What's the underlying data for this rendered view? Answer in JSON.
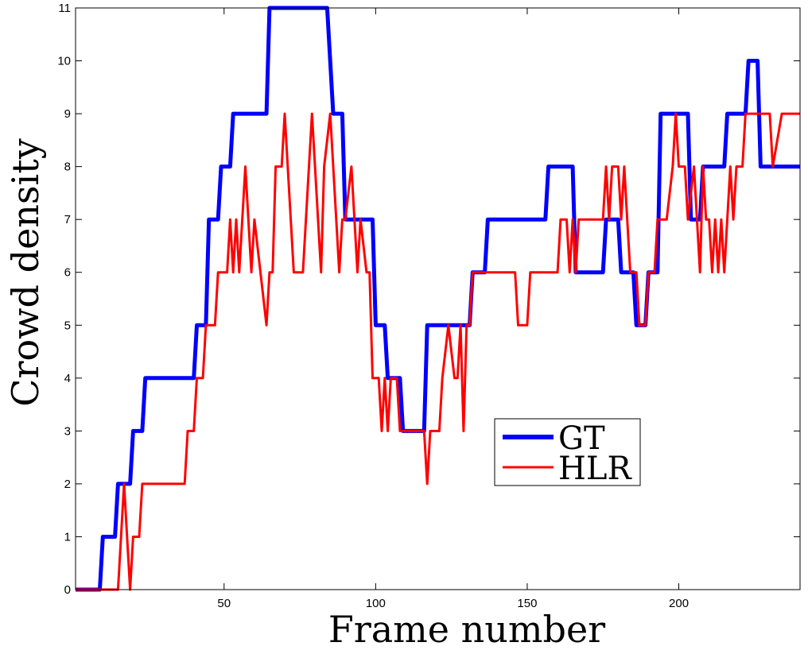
{
  "chart_data": {
    "type": "line",
    "title": "",
    "xlabel": "Frame number",
    "ylabel": "Crowd density",
    "xlim": [
      1,
      240
    ],
    "ylim": [
      0,
      11
    ],
    "xticks": [
      50,
      100,
      150,
      200
    ],
    "yticks": [
      0,
      1,
      2,
      3,
      4,
      5,
      6,
      7,
      8,
      9,
      10,
      11
    ],
    "grid": false,
    "legend_position": "center-right",
    "series": [
      {
        "name": "GT",
        "color": "#0000ff",
        "points": [
          [
            1,
            0
          ],
          [
            9,
            0
          ],
          [
            10,
            1
          ],
          [
            14,
            1
          ],
          [
            15,
            2
          ],
          [
            19,
            2
          ],
          [
            20,
            3
          ],
          [
            23,
            3
          ],
          [
            24,
            4
          ],
          [
            40,
            4
          ],
          [
            41,
            5
          ],
          [
            44,
            5
          ],
          [
            45,
            7
          ],
          [
            48,
            7
          ],
          [
            49,
            8
          ],
          [
            52,
            8
          ],
          [
            53,
            9
          ],
          [
            64,
            9
          ],
          [
            65,
            11
          ],
          [
            84,
            11
          ],
          [
            86,
            9
          ],
          [
            89,
            9
          ],
          [
            90,
            7
          ],
          [
            99,
            7
          ],
          [
            100,
            5
          ],
          [
            103,
            5
          ],
          [
            104,
            4
          ],
          [
            108,
            4
          ],
          [
            109,
            3
          ],
          [
            116,
            3
          ],
          [
            117,
            5
          ],
          [
            131,
            5
          ],
          [
            132,
            6
          ],
          [
            136,
            6
          ],
          [
            137,
            7
          ],
          [
            156,
            7
          ],
          [
            157,
            8
          ],
          [
            165,
            8
          ],
          [
            166,
            6
          ],
          [
            175,
            6
          ],
          [
            176,
            7
          ],
          [
            180,
            7
          ],
          [
            181,
            6
          ],
          [
            185,
            6
          ],
          [
            186,
            5
          ],
          [
            189,
            5
          ],
          [
            190,
            6
          ],
          [
            193,
            6
          ],
          [
            194,
            9
          ],
          [
            203,
            9
          ],
          [
            204,
            7
          ],
          [
            207,
            7
          ],
          [
            208,
            8
          ],
          [
            215,
            8
          ],
          [
            216,
            9
          ],
          [
            222,
            9
          ],
          [
            223,
            10
          ],
          [
            226,
            10
          ],
          [
            227,
            8
          ],
          [
            240,
            8
          ]
        ]
      },
      {
        "name": "HLR",
        "color": "#ff0000",
        "points": [
          [
            1,
            0
          ],
          [
            15,
            0
          ],
          [
            17,
            2
          ],
          [
            18,
            1
          ],
          [
            19,
            0
          ],
          [
            20,
            1
          ],
          [
            22,
            1
          ],
          [
            23,
            2
          ],
          [
            37,
            2
          ],
          [
            38,
            3
          ],
          [
            40,
            3
          ],
          [
            41,
            4
          ],
          [
            43,
            4
          ],
          [
            44,
            5
          ],
          [
            47,
            5
          ],
          [
            48,
            6
          ],
          [
            51,
            6
          ],
          [
            52,
            7
          ],
          [
            53,
            6
          ],
          [
            54,
            7
          ],
          [
            55,
            6
          ],
          [
            57,
            8
          ],
          [
            59,
            6
          ],
          [
            60,
            7
          ],
          [
            62,
            6
          ],
          [
            64,
            5
          ],
          [
            65,
            6
          ],
          [
            66,
            6
          ],
          [
            67,
            8
          ],
          [
            69,
            8
          ],
          [
            70,
            9
          ],
          [
            72,
            7
          ],
          [
            73,
            6
          ],
          [
            76,
            6
          ],
          [
            77,
            7
          ],
          [
            79,
            9
          ],
          [
            80,
            8
          ],
          [
            82,
            6
          ],
          [
            83,
            8
          ],
          [
            85,
            9
          ],
          [
            86,
            8
          ],
          [
            88,
            6
          ],
          [
            89,
            7
          ],
          [
            90,
            7
          ],
          [
            92,
            8
          ],
          [
            94,
            6
          ],
          [
            95,
            7
          ],
          [
            97,
            6
          ],
          [
            98,
            6
          ],
          [
            99,
            4
          ],
          [
            101,
            4
          ],
          [
            102,
            3
          ],
          [
            103,
            4
          ],
          [
            104,
            3
          ],
          [
            105,
            4
          ],
          [
            107,
            4
          ],
          [
            108,
            3
          ],
          [
            116,
            3
          ],
          [
            117,
            2
          ],
          [
            118,
            3
          ],
          [
            121,
            3
          ],
          [
            122,
            4
          ],
          [
            124,
            5
          ],
          [
            126,
            4
          ],
          [
            127,
            4
          ],
          [
            128,
            5
          ],
          [
            129,
            3
          ],
          [
            130,
            5
          ],
          [
            131,
            5
          ],
          [
            132,
            6
          ],
          [
            146,
            6
          ],
          [
            147,
            5
          ],
          [
            150,
            5
          ],
          [
            151,
            6
          ],
          [
            160,
            6
          ],
          [
            161,
            7
          ],
          [
            163,
            7
          ],
          [
            164,
            6
          ],
          [
            165,
            7
          ],
          [
            166,
            6
          ],
          [
            167,
            7
          ],
          [
            175,
            7
          ],
          [
            176,
            8
          ],
          [
            177,
            7
          ],
          [
            178,
            8
          ],
          [
            180,
            8
          ],
          [
            181,
            7
          ],
          [
            182,
            8
          ],
          [
            183,
            7
          ],
          [
            184,
            6
          ],
          [
            186,
            6
          ],
          [
            187,
            5
          ],
          [
            189,
            5
          ],
          [
            190,
            6
          ],
          [
            192,
            6
          ],
          [
            193,
            7
          ],
          [
            196,
            7
          ],
          [
            198,
            8
          ],
          [
            199,
            9
          ],
          [
            200,
            8
          ],
          [
            202,
            8
          ],
          [
            203,
            7
          ],
          [
            205,
            8
          ],
          [
            206,
            7
          ],
          [
            207,
            6
          ],
          [
            208,
            8
          ],
          [
            209,
            7
          ],
          [
            210,
            7
          ],
          [
            211,
            6
          ],
          [
            212,
            7
          ],
          [
            213,
            6
          ],
          [
            214,
            7
          ],
          [
            215,
            6
          ],
          [
            217,
            8
          ],
          [
            218,
            7
          ],
          [
            219,
            8
          ],
          [
            221,
            8
          ],
          [
            222,
            9
          ],
          [
            230,
            9
          ],
          [
            231,
            8
          ],
          [
            234,
            9
          ],
          [
            240,
            9
          ]
        ]
      }
    ]
  }
}
